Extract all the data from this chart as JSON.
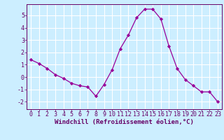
{
  "x": [
    0,
    1,
    2,
    3,
    4,
    5,
    6,
    7,
    8,
    9,
    10,
    11,
    12,
    13,
    14,
    15,
    16,
    17,
    18,
    19,
    20,
    21,
    22,
    23
  ],
  "y": [
    1.4,
    1.1,
    0.7,
    0.2,
    -0.1,
    -0.5,
    -0.7,
    -0.8,
    -1.55,
    -0.6,
    0.6,
    2.3,
    3.4,
    4.8,
    5.5,
    5.5,
    4.7,
    2.5,
    0.7,
    -0.2,
    -0.7,
    -1.2,
    -1.2,
    -2.0
  ],
  "line_color": "#990099",
  "marker": "D",
  "marker_size": 2.2,
  "bg_color": "#cceeff",
  "grid_color": "#ffffff",
  "xlabel": "Windchill (Refroidissement éolien,°C)",
  "xlabel_color": "#660066",
  "tick_color": "#660066",
  "spine_color": "#660066",
  "xlim": [
    -0.5,
    23.5
  ],
  "ylim": [
    -2.6,
    5.9
  ],
  "yticks": [
    -2,
    -1,
    0,
    1,
    2,
    3,
    4,
    5
  ],
  "xticks": [
    0,
    1,
    2,
    3,
    4,
    5,
    6,
    7,
    8,
    9,
    10,
    11,
    12,
    13,
    14,
    15,
    16,
    17,
    18,
    19,
    20,
    21,
    22,
    23
  ],
  "label_fontsize": 6.5,
  "tick_fontsize": 6.0,
  "linewidth": 0.9
}
